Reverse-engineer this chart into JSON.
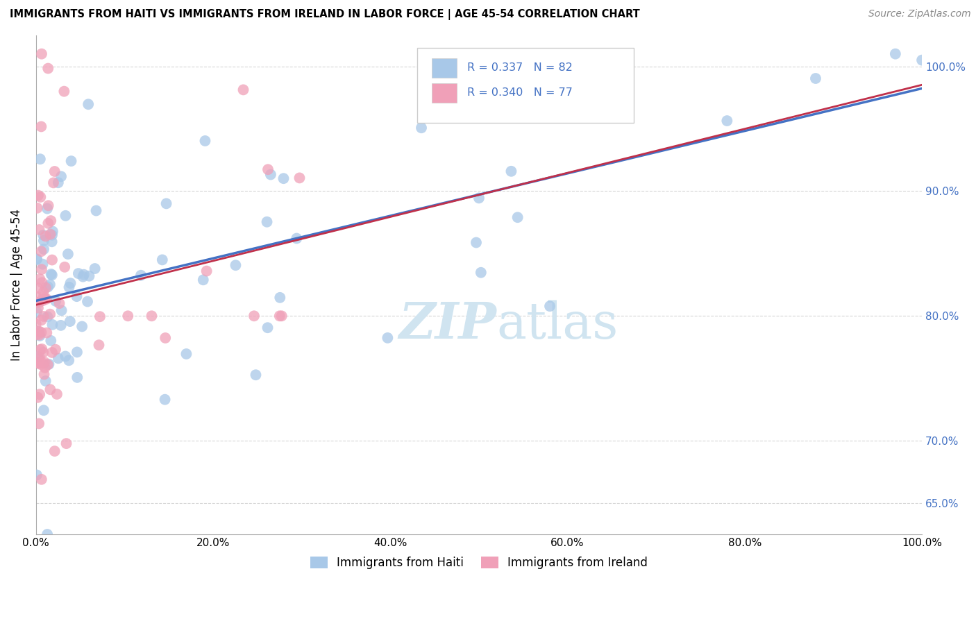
{
  "title": "IMMIGRANTS FROM HAITI VS IMMIGRANTS FROM IRELAND IN LABOR FORCE | AGE 45-54 CORRELATION CHART",
  "source": "Source: ZipAtlas.com",
  "ylabel": "In Labor Force | Age 45-54",
  "legend_labels": [
    "Immigrants from Haiti",
    "Immigrants from Ireland"
  ],
  "haiti_color": "#a8c8e8",
  "ireland_color": "#f0a0b8",
  "haiti_line_color": "#4472c4",
  "ireland_line_color": "#c0304a",
  "R_haiti": 0.337,
  "N_haiti": 82,
  "R_ireland": 0.34,
  "N_ireland": 77,
  "legend_text_color": "#4472c4",
  "axis_color": "#4472c4",
  "watermark_color": "#d0e4f0",
  "ylim_low": 0.625,
  "ylim_high": 1.025,
  "xlim_low": 0.0,
  "xlim_high": 1.0,
  "yticks": [
    0.65,
    0.7,
    0.8,
    0.9,
    1.0
  ],
  "xticks": [
    0.0,
    0.2,
    0.4,
    0.6,
    0.8,
    1.0
  ]
}
